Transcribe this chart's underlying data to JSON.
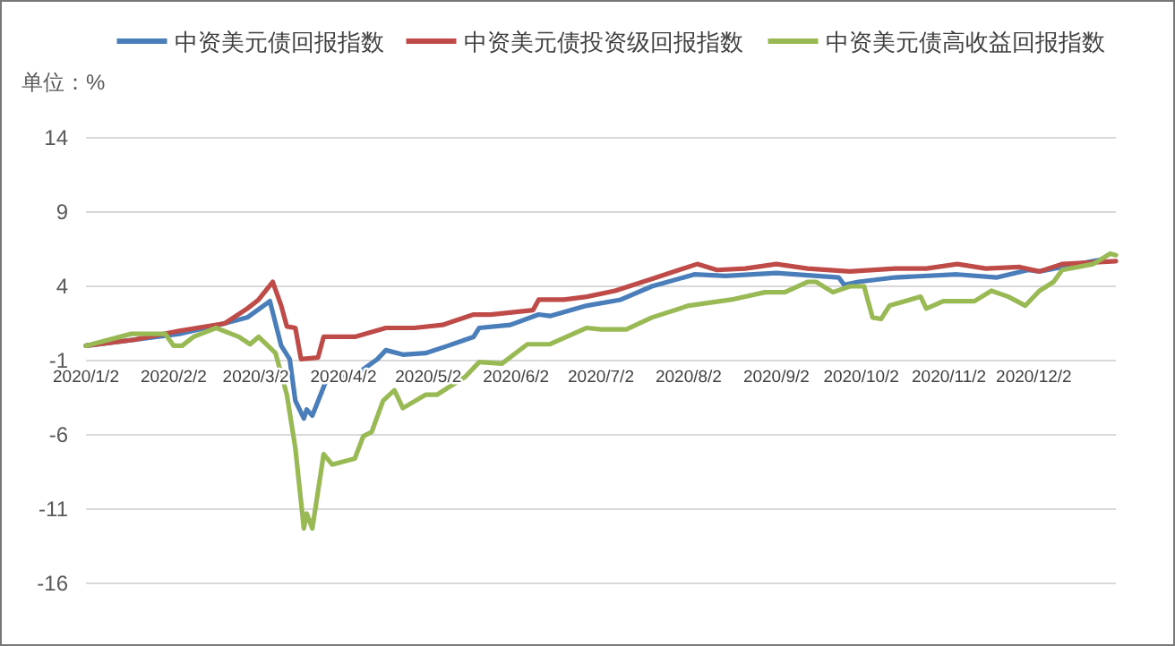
{
  "chart_data": {
    "type": "line",
    "ylabel": "单位：%",
    "xlim": [
      "2020-01-02",
      "2020-12-31"
    ],
    "xticks": [
      {
        "value": "2020-01-02",
        "label": "2020/1/2"
      },
      {
        "value": "2020-02-02",
        "label": "2020/2/2"
      },
      {
        "value": "2020-03-02",
        "label": "2020/3/2"
      },
      {
        "value": "2020-04-02",
        "label": "2020/4/2"
      },
      {
        "value": "2020-05-02",
        "label": "2020/5/2"
      },
      {
        "value": "2020-06-02",
        "label": "2020/6/2"
      },
      {
        "value": "2020-07-02",
        "label": "2020/7/2"
      },
      {
        "value": "2020-08-02",
        "label": "2020/8/2"
      },
      {
        "value": "2020-09-02",
        "label": "2020/9/2"
      },
      {
        "value": "2020-10-02",
        "label": "2020/10/2"
      },
      {
        "value": "2020-11-02",
        "label": "2020/11/2"
      },
      {
        "value": "2020-12-02",
        "label": "2020/12/2"
      }
    ],
    "ylim": [
      -16,
      14
    ],
    "yticks": [
      -16,
      -11,
      -6,
      -1,
      4,
      9,
      14
    ],
    "grid": "y",
    "legend": "top",
    "marker": "none",
    "line_style": "solid",
    "series": [
      {
        "name": "中资美元债回报指数",
        "color": "#4a7ebb",
        "x": [
          "2020-01-02",
          "2020-01-19",
          "2020-02-04",
          "2020-02-20",
          "2020-02-28",
          "2020-03-07",
          "2020-03-11",
          "2020-03-14",
          "2020-03-16",
          "2020-03-19",
          "2020-03-20",
          "2020-03-22",
          "2020-03-27",
          "2020-04-06",
          "2020-04-14",
          "2020-04-17",
          "2020-04-23",
          "2020-05-01",
          "2020-05-09",
          "2020-05-18",
          "2020-05-20",
          "2020-05-31",
          "2020-06-10",
          "2020-06-14",
          "2020-06-27",
          "2020-07-09",
          "2020-07-20",
          "2020-08-04",
          "2020-08-15",
          "2020-09-02",
          "2020-09-24",
          "2020-09-26",
          "2020-10-01",
          "2020-10-14",
          "2020-11-05",
          "2020-11-19",
          "2020-11-30",
          "2020-12-04",
          "2020-12-12",
          "2020-12-26"
        ],
        "values": [
          0.0,
          0.4,
          0.8,
          1.5,
          1.9,
          3.0,
          0.0,
          -0.9,
          -3.7,
          -4.9,
          -4.3,
          -4.7,
          -2.3,
          -2.0,
          -0.9,
          -0.3,
          -0.6,
          -0.5,
          0.0,
          0.6,
          1.2,
          1.4,
          2.1,
          2.0,
          2.7,
          3.1,
          4.0,
          4.8,
          4.7,
          4.9,
          4.6,
          4.1,
          4.3,
          4.6,
          4.8,
          4.6,
          5.1,
          5.0,
          5.3,
          5.8
        ]
      },
      {
        "name": "中资美元债投资级回报指数",
        "color": "#be4b48",
        "x": [
          "2020-01-02",
          "2020-01-19",
          "2020-02-04",
          "2020-02-20",
          "2020-02-28",
          "2020-03-03",
          "2020-03-08",
          "2020-03-11",
          "2020-03-13",
          "2020-03-16",
          "2020-03-18",
          "2020-03-24",
          "2020-03-26",
          "2020-04-06",
          "2020-04-17",
          "2020-04-27",
          "2020-05-07",
          "2020-05-18",
          "2020-05-24",
          "2020-06-08",
          "2020-06-10",
          "2020-06-19",
          "2020-06-27",
          "2020-07-07",
          "2020-07-20",
          "2020-08-05",
          "2020-08-12",
          "2020-08-22",
          "2020-09-02",
          "2020-09-13",
          "2020-09-28",
          "2020-10-14",
          "2020-10-25",
          "2020-11-05",
          "2020-11-15",
          "2020-11-27",
          "2020-12-04",
          "2020-12-12",
          "2020-12-31"
        ],
        "values": [
          0.0,
          0.4,
          1.0,
          1.5,
          2.5,
          3.1,
          4.3,
          2.7,
          1.3,
          1.2,
          -0.9,
          -0.8,
          0.6,
          0.6,
          1.2,
          1.2,
          1.4,
          2.1,
          2.1,
          2.4,
          3.1,
          3.1,
          3.3,
          3.7,
          4.5,
          5.5,
          5.1,
          5.2,
          5.5,
          5.2,
          5.0,
          5.2,
          5.2,
          5.5,
          5.2,
          5.3,
          5.0,
          5.5,
          5.7
        ]
      },
      {
        "name": "中资美元债高收益回报指数",
        "color": "#98b954",
        "x": [
          "2020-01-02",
          "2020-01-18",
          "2020-01-30",
          "2020-02-02",
          "2020-02-05",
          "2020-02-09",
          "2020-02-17",
          "2020-02-25",
          "2020-02-29",
          "2020-03-03",
          "2020-03-09",
          "2020-03-13",
          "2020-03-16",
          "2020-03-19",
          "2020-03-20",
          "2020-03-22",
          "2020-03-26",
          "2020-03-29",
          "2020-04-06",
          "2020-04-09",
          "2020-04-12",
          "2020-04-16",
          "2020-04-20",
          "2020-04-23",
          "2020-05-01",
          "2020-05-05",
          "2020-05-15",
          "2020-05-20",
          "2020-05-28",
          "2020-06-06",
          "2020-06-14",
          "2020-06-27",
          "2020-07-02",
          "2020-07-11",
          "2020-07-20",
          "2020-08-02",
          "2020-08-17",
          "2020-08-29",
          "2020-09-05",
          "2020-09-13",
          "2020-09-16",
          "2020-09-22",
          "2020-09-28",
          "2020-10-03",
          "2020-10-06",
          "2020-10-09",
          "2020-10-12",
          "2020-10-23",
          "2020-10-25",
          "2020-10-31",
          "2020-11-11",
          "2020-11-17",
          "2020-11-23",
          "2020-11-29",
          "2020-12-04",
          "2020-12-09",
          "2020-12-12",
          "2020-12-23",
          "2020-12-29",
          "2020-12-31"
        ],
        "values": [
          0.0,
          0.8,
          0.8,
          0.0,
          0.0,
          0.6,
          1.2,
          0.6,
          0.1,
          0.6,
          -0.5,
          -3.3,
          -6.9,
          -12.3,
          -11.3,
          -12.3,
          -7.3,
          -8.0,
          -7.6,
          -6.1,
          -5.8,
          -3.7,
          -3.0,
          -4.2,
          -3.3,
          -3.3,
          -2.1,
          -1.1,
          -1.2,
          0.1,
          0.1,
          1.2,
          1.1,
          1.1,
          1.9,
          2.7,
          3.1,
          3.6,
          3.6,
          4.3,
          4.3,
          3.6,
          4.0,
          4.0,
          1.9,
          1.8,
          2.7,
          3.3,
          2.5,
          3.0,
          3.0,
          3.7,
          3.3,
          2.7,
          3.7,
          4.3,
          5.1,
          5.5,
          6.2,
          6.1
        ]
      }
    ]
  }
}
